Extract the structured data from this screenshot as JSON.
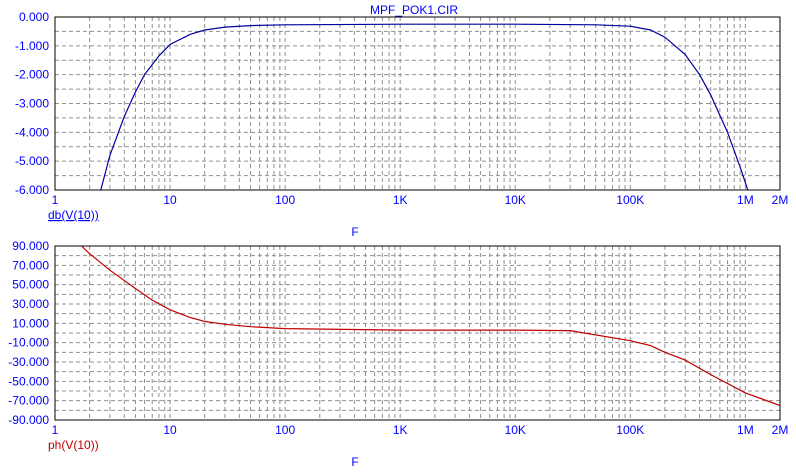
{
  "window": {
    "title": "MPF_POK1.CIR"
  },
  "colors": {
    "text": "#0000ff",
    "grid": "#909090",
    "axis": "#000000",
    "gain_trace": "#0000a0",
    "phase_trace": "#c00000",
    "phase_label": "#c00000",
    "gain_label": "#0000ff"
  },
  "chart_data": [
    {
      "type": "line",
      "title": "MPF_POK1.CIR",
      "xlabel": "F",
      "ylabel": "",
      "x_scale": "log",
      "xlim": [
        1,
        2000000
      ],
      "ylim": [
        -6,
        0
      ],
      "x_tick_values": [
        1,
        10,
        100,
        1000,
        10000,
        100000,
        1000000,
        2000000
      ],
      "x_tick_labels": [
        "1",
        "10",
        "100",
        "1K",
        "10K",
        "100K",
        "1M",
        "2M"
      ],
      "y_tick_values": [
        0,
        -1,
        -2,
        -3,
        -4,
        -5,
        -6
      ],
      "y_tick_labels": [
        "0.000",
        "-1.000",
        "-2.000",
        "-3.000",
        "-4.000",
        "-5.000",
        "-6.000"
      ],
      "grid": true,
      "series": [
        {
          "name": "db(V(10))",
          "x": [
            2.5,
            3,
            4,
            5,
            6,
            8,
            10,
            15,
            20,
            30,
            50,
            100,
            1000,
            10000,
            50000,
            100000,
            150000,
            200000,
            300000,
            400000,
            500000,
            700000,
            900000,
            1050000
          ],
          "values": [
            -6.0,
            -4.8,
            -3.45,
            -2.6,
            -2.0,
            -1.35,
            -0.95,
            -0.6,
            -0.45,
            -0.35,
            -0.3,
            -0.27,
            -0.25,
            -0.25,
            -0.27,
            -0.32,
            -0.45,
            -0.7,
            -1.3,
            -2.0,
            -2.7,
            -4.0,
            -5.2,
            -6.0
          ]
        }
      ]
    },
    {
      "type": "line",
      "title": "",
      "xlabel": "F",
      "ylabel": "",
      "x_scale": "log",
      "xlim": [
        1,
        2000000
      ],
      "ylim": [
        -90,
        90
      ],
      "x_tick_values": [
        1,
        10,
        100,
        1000,
        10000,
        100000,
        1000000,
        2000000
      ],
      "x_tick_labels": [
        "1",
        "10",
        "100",
        "1K",
        "10K",
        "100K",
        "1M",
        "2M"
      ],
      "y_tick_values": [
        90,
        70,
        50,
        30,
        10,
        -10,
        -30,
        -50,
        -70,
        -90
      ],
      "y_tick_labels": [
        "90.000",
        "70.000",
        "50.000",
        "30.000",
        "10.000",
        "-10.000",
        "-30.000",
        "-50.000",
        "-70.000",
        "-90.000"
      ],
      "grid": true,
      "series": [
        {
          "name": "ph(V(10))",
          "x": [
            1.7,
            2,
            3,
            5,
            7,
            10,
            15,
            20,
            30,
            50,
            100,
            1000,
            10000,
            30000,
            100000,
            150000,
            200000,
            300000,
            500000,
            1000000,
            2000000
          ],
          "values": [
            90,
            82,
            65,
            46,
            34,
            24,
            16,
            12,
            9,
            6.5,
            4.5,
            3,
            3,
            2.5,
            -8,
            -13,
            -20,
            -28,
            -43,
            -62,
            -75
          ]
        }
      ]
    }
  ],
  "panels": [
    {
      "trace_label": "db(V(10))",
      "xlabel": "F"
    },
    {
      "trace_label": "ph(V(10))",
      "xlabel": "F"
    }
  ]
}
